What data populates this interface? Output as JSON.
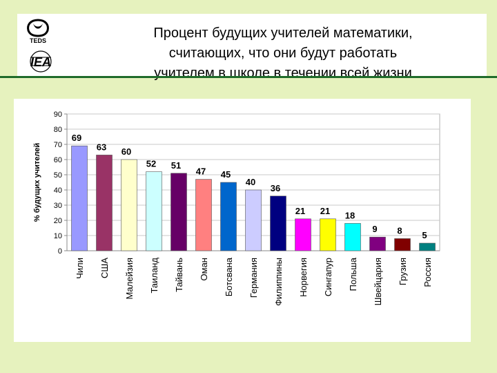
{
  "header": {
    "title": "Процент будущих учителей математики,\nсчитающих, что они будут  работать\nучителем в школе в течении всей жизни",
    "logo_top_text": "TEDS",
    "logo_bottom_text": "IEA"
  },
  "colors": {
    "background": "#e6f2be",
    "header_rule": "#1f6b2a"
  },
  "chart_data": {
    "type": "bar",
    "ylabel": "% будущих учителей",
    "ylim": [
      0,
      90
    ],
    "yticks": [
      0,
      10,
      20,
      30,
      40,
      50,
      60,
      70,
      80,
      90
    ],
    "grid": true,
    "categories": [
      "Чили",
      "США",
      "Малейзия",
      "Таиланд",
      "Тайвань",
      "Оман",
      "Ботсвана",
      "Германия",
      "Филиппины",
      "Норвегия",
      "Сингапур",
      "Польша",
      "Швейцария",
      "Грузия",
      "Россия"
    ],
    "values": [
      69,
      63,
      60,
      52,
      51,
      47,
      45,
      40,
      36,
      21,
      21,
      18,
      9,
      8,
      5
    ],
    "colors": [
      "#9999ff",
      "#993366",
      "#ffffcc",
      "#ccffff",
      "#660066",
      "#ff8080",
      "#0066cc",
      "#ccccff",
      "#000080",
      "#ff00ff",
      "#ffff00",
      "#00ffff",
      "#800080",
      "#800000",
      "#008080"
    ]
  }
}
